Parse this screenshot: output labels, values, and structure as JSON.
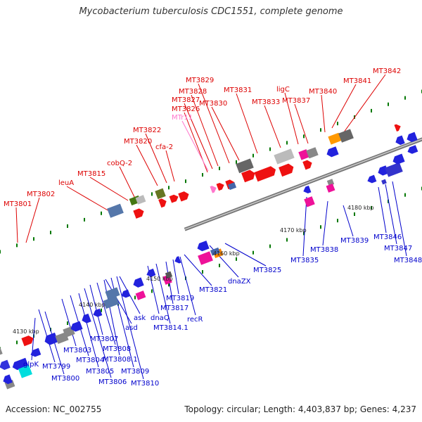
{
  "title": "Mycobacterium tuberculosis CDC1551, complete genome",
  "footer": {
    "accession": "Accession: NC_002755",
    "summary": "Topology: circular; Length: 4,403,837 bp; Genes: 4,237"
  },
  "colors": {
    "forward_label": "#dd0000",
    "reverse_label": "#0000cc",
    "rna_label": "#ff77cc",
    "backbone": "#777777",
    "tick": "#007700"
  },
  "ticks": [
    "4130 kbp",
    "4140 kbp",
    "4150 kbp",
    "4160 kbp",
    "4170 kbp",
    "4180 kbp"
  ],
  "forward_labels": [
    "MT3801",
    "MT3802",
    "leuA",
    "MT3815",
    "cobQ-2",
    "MT3820",
    "MT3822",
    "cfa-2",
    "MT3826",
    "MTr11",
    "MT3827",
    "MT3828",
    "MT3829",
    "MT3830",
    "MT3831",
    "MT3833",
    "ligC",
    "MT3837",
    "MT3840",
    "MT3841",
    "MT3842"
  ],
  "reverse_labels": [
    "glpK",
    "MT3799",
    "MT3800",
    "MT3803",
    "MT3804",
    "MT3805",
    "MT3806",
    "MT3807",
    "MT3808",
    "MT3808.1",
    "MT3809",
    "MT3810",
    "asd",
    "ask",
    "dnaQ",
    "MT3814.1",
    "MT3817",
    "MT3819",
    "recR",
    "MT3821",
    "dnaZX",
    "MT3825",
    "MT3835",
    "MT3838",
    "MT3839",
    "MT3846",
    "MT3847",
    "MT3848"
  ]
}
